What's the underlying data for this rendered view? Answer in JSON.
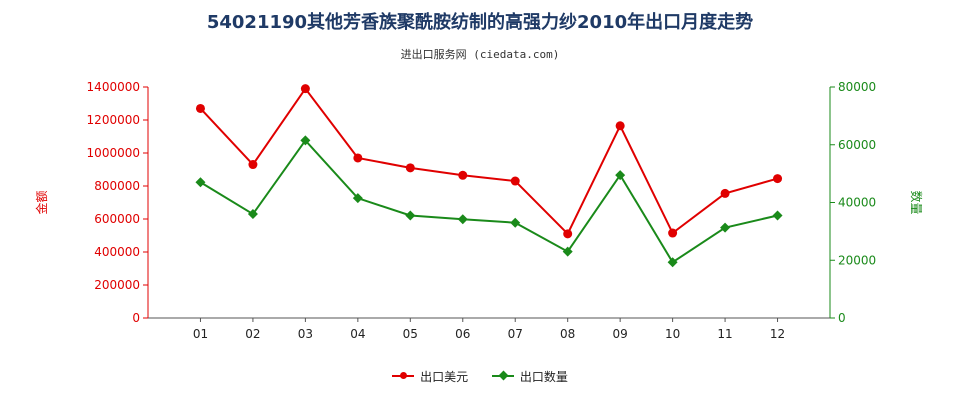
{
  "title": "54021190其他芳香族聚酰胺纺制的高强力纱2010年出口月度走势",
  "subtitle": "进出口服务网 (ciedata.com)",
  "chart_data": {
    "type": "line",
    "categories": [
      "01",
      "02",
      "03",
      "04",
      "05",
      "06",
      "07",
      "08",
      "09",
      "10",
      "11",
      "12"
    ],
    "y_left_label": "金额",
    "y_right_label": "数量",
    "y_left_ticks": [
      "0",
      "200000",
      "400000",
      "600000",
      "800000",
      "1000000",
      "1200000",
      "1400000"
    ],
    "y_right_ticks": [
      "0",
      "20000",
      "40000",
      "60000",
      "80000"
    ],
    "y_left_range": [
      0,
      1400000
    ],
    "y_right_range": [
      0,
      80000
    ],
    "series": [
      {
        "name": "出口美元",
        "axis": "left",
        "color": "#e00000",
        "marker": "circle",
        "values": [
          1270000,
          930000,
          1390000,
          970000,
          910000,
          865000,
          830000,
          510000,
          1165000,
          515000,
          755000,
          845000
        ]
      },
      {
        "name": "出口数量",
        "axis": "right",
        "color": "#1a8a1a",
        "marker": "diamond",
        "values": [
          47000,
          36000,
          61500,
          41500,
          35500,
          34200,
          33000,
          23000,
          49500,
          19300,
          31300,
          35500
        ]
      }
    ],
    "grid": false,
    "legend_position": "bottom"
  }
}
